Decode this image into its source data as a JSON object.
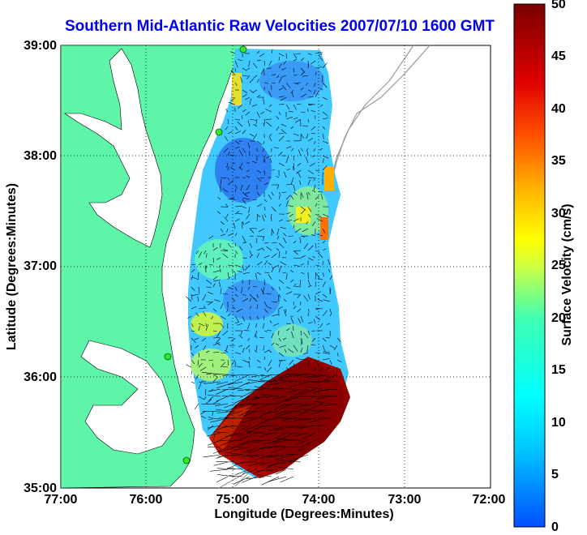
{
  "title": "Southern Mid-Atlantic Raw Velocities 2007/07/10 1600 GMT",
  "axes": {
    "xlabel": "Longitude (Degrees:Minutes)",
    "ylabel": "Latitude (Degrees:Minutes)",
    "xticks": [
      "77:00",
      "76:00",
      "75:00",
      "74:00",
      "73:00",
      "72:00"
    ],
    "yticks": [
      "39:00",
      "38:00",
      "37:00",
      "36:00",
      "35:00"
    ]
  },
  "colorbar": {
    "label": "Surface Velocity (cm/s)",
    "ticks": [
      "50",
      "45",
      "40",
      "35",
      "30",
      "25",
      "20",
      "15",
      "10",
      "5",
      "0"
    ],
    "range": [
      0,
      50
    ]
  },
  "colors": {
    "land": "#5ff5a8",
    "title": "#0000ee",
    "vector": "#000000",
    "station": "#2ee82e"
  }
}
